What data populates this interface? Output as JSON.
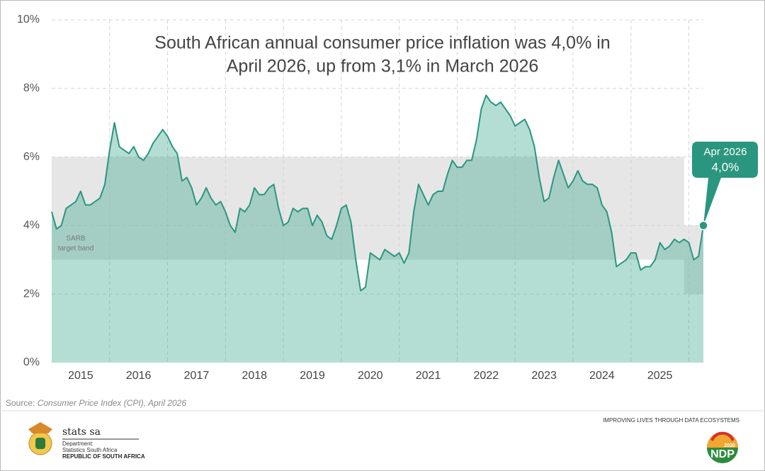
{
  "chart_data": {
    "type": "area-line",
    "title": [
      "South African annual consumer price inflation was 4,0% in",
      "April 2026, up from 3,1% in March 2026"
    ],
    "categories": [
      null,
      null,
      null,
      null,
      null,
      null,
      "2015",
      null,
      null,
      null,
      null,
      null,
      null,
      null,
      null,
      null,
      null,
      null,
      "2016",
      null,
      null,
      null,
      null,
      null,
      null,
      null,
      null,
      null,
      null,
      null,
      "2017",
      null,
      null,
      null,
      null,
      null,
      null,
      null,
      null,
      null,
      null,
      null,
      "2018",
      null,
      null,
      null,
      null,
      null,
      null,
      null,
      null,
      null,
      null,
      null,
      "2019",
      null,
      null,
      null,
      null,
      null,
      null,
      null,
      null,
      null,
      null,
      null,
      "2020",
      null,
      null,
      null,
      null,
      null,
      null,
      null,
      null,
      null,
      null,
      null,
      "2021",
      null,
      null,
      null,
      null,
      null,
      null,
      null,
      null,
      null,
      null,
      null,
      "2022",
      null,
      null,
      null,
      null,
      null,
      null,
      null,
      null,
      null,
      null,
      null,
      "2023",
      null,
      null,
      null,
      null,
      null,
      null,
      null,
      null,
      null,
      null,
      null,
      "2024",
      null,
      null,
      null,
      null,
      null,
      null,
      null,
      null,
      null,
      null,
      null,
      "2025",
      null,
      null,
      null,
      null,
      null,
      null,
      null,
      null,
      null
    ],
    "values": [
      4.4,
      3.9,
      4.0,
      4.5,
      4.6,
      4.7,
      5.0,
      4.6,
      4.6,
      4.7,
      4.8,
      5.2,
      6.2,
      7.0,
      6.3,
      6.2,
      6.1,
      6.3,
      6.0,
      5.9,
      6.1,
      6.4,
      6.6,
      6.8,
      6.6,
      6.3,
      6.1,
      5.3,
      5.4,
      5.1,
      4.6,
      4.8,
      5.1,
      4.8,
      4.6,
      4.7,
      4.4,
      4.0,
      3.8,
      4.5,
      4.4,
      4.6,
      5.1,
      4.9,
      4.9,
      5.1,
      5.2,
      4.5,
      4.0,
      4.1,
      4.5,
      4.4,
      4.5,
      4.5,
      4.0,
      4.3,
      4.1,
      3.7,
      3.6,
      4.0,
      4.5,
      4.6,
      4.1,
      3.0,
      2.1,
      2.2,
      3.2,
      3.1,
      3.0,
      3.3,
      3.2,
      3.1,
      3.2,
      2.9,
      3.2,
      4.4,
      5.2,
      4.9,
      4.6,
      4.9,
      5.0,
      5.0,
      5.5,
      5.9,
      5.7,
      5.7,
      5.9,
      5.9,
      6.5,
      7.4,
      7.8,
      7.6,
      7.5,
      7.6,
      7.4,
      7.2,
      6.9,
      7.0,
      7.1,
      6.8,
      6.3,
      5.4,
      4.7,
      4.8,
      5.4,
      5.9,
      5.5,
      5.1,
      5.3,
      5.6,
      5.3,
      5.2,
      5.2,
      5.1,
      4.6,
      4.4,
      3.8,
      2.8,
      2.9,
      3.0,
      3.2,
      3.2,
      2.7,
      2.8,
      2.8,
      3.0,
      3.5,
      3.3,
      3.4,
      3.6,
      3.5,
      3.6,
      3.5,
      3.0,
      3.1,
      4.0
    ],
    "color": "#2a9680",
    "ylim": [
      0,
      10
    ],
    "yticks": [
      {
        "value": 0,
        "label": "0%"
      },
      {
        "value": 2,
        "label": "2%"
      },
      {
        "value": 4,
        "label": "4%"
      },
      {
        "value": 6,
        "label": "6%"
      },
      {
        "value": 8,
        "label": "8%"
      },
      {
        "value": 10,
        "label": "10%"
      }
    ],
    "grid": true,
    "target_bands": [
      {
        "low": 3,
        "high": 6,
        "months": 131
      },
      {
        "low": 2,
        "high": 4,
        "months": 5
      }
    ],
    "band_label": [
      "SARB",
      "target band"
    ],
    "callout": [
      "Apr 2026",
      "4,0%"
    ],
    "source": [
      "Source:",
      "Consumer Price Index (CPI), April 2026"
    ]
  },
  "footer": {
    "logo_name": "stats sa",
    "department": [
      "Department:",
      "Statistics South Africa",
      "REPUBLIC OF SOUTH AFRICA"
    ],
    "slogan": "IMPROVING LIVES THROUGH DATA ECOSYSTEMS",
    "ndp": "NDP",
    "ndp_year": "2030"
  }
}
